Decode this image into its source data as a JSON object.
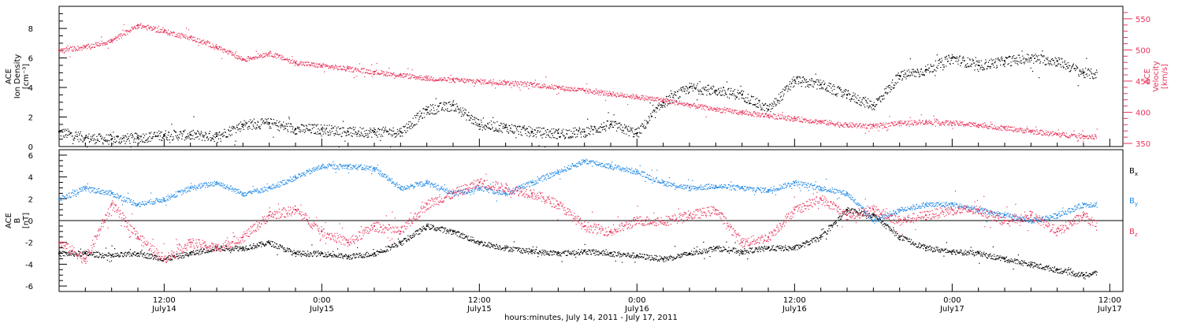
{
  "chart_data": [
    {
      "type": "scatter",
      "panel": "top",
      "ylabel_left": "ACE Ion Density [cm⁻³]",
      "ylabel_left_lines": [
        "ACE",
        "Ion Density",
        "[cm⁻³]"
      ],
      "ylabel_right_lines": [
        "ACE",
        "Velocity",
        "[km/s]"
      ],
      "ylim_left": [
        0,
        9.5
      ],
      "yticks_left": [
        "0",
        "2",
        "4",
        "6",
        "8"
      ],
      "ylim_right": [
        345,
        570
      ],
      "yticks_right": [
        "350",
        "400",
        "450",
        "500",
        "550"
      ],
      "xlim_hours": [
        4,
        84
      ],
      "series": [
        {
          "name": "",
          "axis": "left",
          "color": "#000000",
          "x_hours": [
            4,
            6,
            8,
            10,
            12,
            14,
            16,
            18,
            20,
            22,
            24,
            26,
            28,
            30,
            32,
            34,
            36,
            38,
            40,
            42,
            44,
            46,
            48,
            50,
            52,
            54,
            56,
            58,
            60,
            62,
            64,
            66,
            68,
            70,
            72,
            74,
            76,
            78,
            80,
            82,
            84
          ],
          "values": [
            1.0,
            0.6,
            0.5,
            0.6,
            0.8,
            0.8,
            0.7,
            1.5,
            1.6,
            1.2,
            1.2,
            1.0,
            1.0,
            1.0,
            2.5,
            2.8,
            1.5,
            1.3,
            1.0,
            0.9,
            1.0,
            1.5,
            0.9,
            3.0,
            4.0,
            3.8,
            3.5,
            2.5,
            4.5,
            4.2,
            3.5,
            2.8,
            4.8,
            5.2,
            6.0,
            5.5,
            5.8,
            6.0,
            5.8,
            5.0,
            4.8
          ]
        },
        {
          "name": "",
          "axis": "right",
          "color": "#E8345A",
          "x_hours": [
            4,
            6,
            8,
            10,
            12,
            14,
            16,
            18,
            20,
            22,
            24,
            26,
            28,
            30,
            32,
            34,
            36,
            38,
            40,
            42,
            44,
            46,
            48,
            50,
            52,
            54,
            56,
            58,
            60,
            62,
            64,
            66,
            68,
            70,
            72,
            74,
            76,
            78,
            80,
            82,
            84
          ],
          "values": [
            500,
            505,
            515,
            540,
            530,
            520,
            505,
            485,
            495,
            480,
            475,
            470,
            465,
            460,
            455,
            452,
            450,
            448,
            445,
            440,
            435,
            430,
            425,
            420,
            412,
            405,
            400,
            395,
            390,
            385,
            380,
            378,
            383,
            385,
            383,
            380,
            375,
            370,
            365,
            362,
            360
          ]
        }
      ]
    },
    {
      "type": "scatter",
      "panel": "bottom",
      "ylabel_lines": [
        "ACE",
        "B",
        "[nT]"
      ],
      "ylim": [
        -6.5,
        6.5
      ],
      "yticks": [
        "-6",
        "-4",
        "-2",
        "0",
        "2",
        "4",
        "6"
      ],
      "xlim_hours": [
        4,
        84
      ],
      "zero_line": true,
      "series": [
        {
          "name": "Bx",
          "name_main": "B",
          "name_sub": "x",
          "color": "#000000",
          "x_hours": [
            4,
            6,
            8,
            10,
            12,
            14,
            16,
            18,
            20,
            22,
            24,
            26,
            28,
            30,
            32,
            34,
            36,
            38,
            40,
            42,
            44,
            46,
            48,
            50,
            52,
            54,
            56,
            58,
            60,
            62,
            64,
            66,
            68,
            70,
            72,
            74,
            76,
            78,
            80,
            82,
            84
          ],
          "values": [
            -3.0,
            -3.0,
            -3.2,
            -3.0,
            -3.5,
            -3.0,
            -2.5,
            -2.5,
            -2.0,
            -3.0,
            -3.0,
            -3.3,
            -3.0,
            -2.0,
            -0.5,
            -1.0,
            -2.0,
            -2.5,
            -2.8,
            -3.0,
            -2.8,
            -3.0,
            -3.2,
            -3.5,
            -3.0,
            -2.5,
            -2.8,
            -2.5,
            -2.5,
            -1.5,
            1.0,
            0.5,
            -1.5,
            -2.5,
            -2.8,
            -3.0,
            -3.5,
            -4.0,
            -4.5,
            -5.0,
            -4.5
          ]
        },
        {
          "name": "By",
          "name_main": "B",
          "name_sub": "y",
          "color": "#1E88E5",
          "x_hours": [
            4,
            6,
            8,
            10,
            12,
            14,
            16,
            18,
            20,
            22,
            24,
            26,
            28,
            30,
            32,
            34,
            36,
            38,
            40,
            42,
            44,
            46,
            48,
            50,
            52,
            54,
            56,
            58,
            60,
            62,
            64,
            66,
            68,
            70,
            72,
            74,
            76,
            78,
            80,
            82,
            84
          ],
          "values": [
            2.0,
            3.0,
            2.5,
            1.5,
            2.0,
            3.0,
            3.5,
            2.5,
            3.0,
            4.0,
            5.0,
            5.0,
            4.8,
            3.0,
            3.5,
            2.5,
            3.0,
            2.5,
            3.5,
            4.5,
            5.5,
            5.0,
            4.5,
            3.5,
            3.0,
            3.2,
            3.0,
            2.8,
            3.5,
            3.0,
            2.5,
            0.0,
            1.0,
            1.5,
            1.5,
            1.0,
            0.5,
            0.0,
            0.5,
            1.5,
            1.5
          ]
        },
        {
          "name": "Bz",
          "name_main": "B",
          "name_sub": "z",
          "color": "#E8345A",
          "x_hours": [
            4,
            6,
            8,
            10,
            12,
            14,
            16,
            18,
            20,
            22,
            24,
            26,
            28,
            30,
            32,
            34,
            36,
            38,
            40,
            42,
            44,
            46,
            48,
            50,
            52,
            54,
            56,
            58,
            60,
            62,
            64,
            66,
            68,
            70,
            72,
            74,
            76,
            78,
            80,
            82,
            84
          ],
          "values": [
            -2.0,
            -3.5,
            1.5,
            -1.5,
            -3.5,
            -2.0,
            -2.5,
            -1.5,
            0.5,
            1.0,
            -1.0,
            -2.0,
            -0.5,
            -1.0,
            1.5,
            2.5,
            3.5,
            3.0,
            2.5,
            1.5,
            -0.5,
            -1.0,
            0.0,
            0.0,
            0.5,
            1.0,
            -2.0,
            -1.5,
            1.0,
            2.0,
            0.5,
            1.0,
            0.0,
            0.5,
            1.0,
            1.0,
            0.0,
            0.5,
            -1.0,
            0.5,
            -1.5
          ]
        }
      ]
    }
  ],
  "x_axis": {
    "ticks": [
      {
        "hour": 12,
        "time": "12:00",
        "date": "July14"
      },
      {
        "hour": 24,
        "time": "0:00",
        "date": "July15"
      },
      {
        "hour": 36,
        "time": "12:00",
        "date": "July15"
      },
      {
        "hour": 48,
        "time": "0:00",
        "date": "July16"
      },
      {
        "hour": 60,
        "time": "12:00",
        "date": "July16"
      },
      {
        "hour": 72,
        "time": "0:00",
        "date": "July17"
      },
      {
        "hour": 84,
        "time": "12:00",
        "date": "July17"
      }
    ],
    "label": "hours:minutes, July 14, 2011 - July 17, 2011"
  },
  "colors": {
    "black": "#000000",
    "blue": "#1E88E5",
    "pink": "#E8345A"
  }
}
